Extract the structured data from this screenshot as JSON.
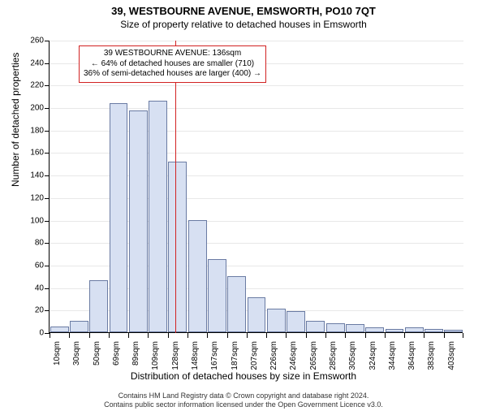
{
  "title_line1": "39, WESTBOURNE AVENUE, EMSWORTH, PO10 7QT",
  "title_line2": "Size of property relative to detached houses in Emsworth",
  "yaxis_label": "Number of detached properties",
  "xaxis_label": "Distribution of detached houses by size in Emsworth",
  "chart": {
    "type": "histogram",
    "background_color": "#ffffff",
    "grid_color": "#e8e8e8",
    "axis_color": "#000000",
    "bar_fill": "#d7e0f2",
    "bar_border": "#6a7ba3",
    "marker_color": "#d22222",
    "ylim": [
      0,
      260
    ],
    "ytick_step": 20,
    "yticks": [
      0,
      20,
      40,
      60,
      80,
      100,
      120,
      140,
      160,
      180,
      200,
      220,
      240,
      260
    ],
    "categories": [
      "10sqm",
      "30sqm",
      "50sqm",
      "69sqm",
      "89sqm",
      "109sqm",
      "128sqm",
      "148sqm",
      "167sqm",
      "187sqm",
      "207sqm",
      "226sqm",
      "246sqm",
      "265sqm",
      "285sqm",
      "305sqm",
      "324sqm",
      "344sqm",
      "364sqm",
      "383sqm",
      "403sqm"
    ],
    "values": [
      5,
      10,
      46,
      204,
      197,
      206,
      152,
      100,
      65,
      50,
      31,
      21,
      19,
      10,
      8,
      7,
      4,
      3,
      4,
      3,
      2
    ],
    "bar_width_ratio": 0.94,
    "marker_value_sqm": 136,
    "xlabel_fontsize": 10,
    "ylabel_fontsize": 10,
    "axis_label_fontsize": 12,
    "title_fontsize": 13
  },
  "annotation": {
    "line1": "39 WESTBOURNE AVENUE: 136sqm",
    "line2": "← 64% of detached houses are smaller (710)",
    "line3": "36% of semi-detached houses are larger (400) →",
    "border_color": "#d22222",
    "fontsize": 10
  },
  "footer_line1": "Contains HM Land Registry data © Crown copyright and database right 2024.",
  "footer_line2": "Contains public sector information licensed under the Open Government Licence v3.0."
}
